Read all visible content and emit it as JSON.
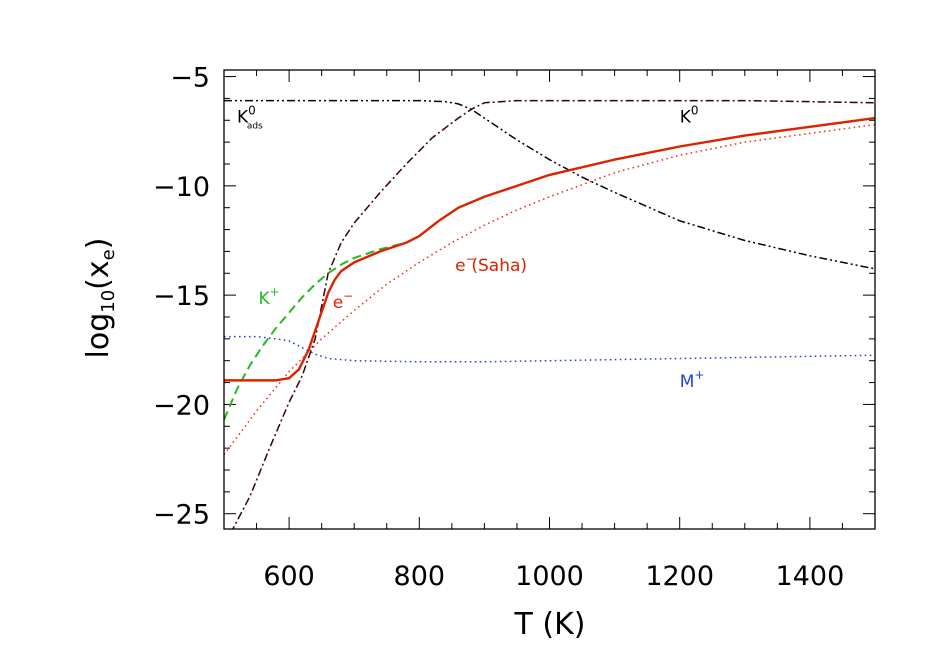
{
  "chart_data": {
    "type": "line",
    "xlabel": "T (K)",
    "ylabel_main": "log",
    "ylabel_sub": "10",
    "ylabel_x": "(x",
    "ylabel_xsub": "e",
    "ylabel_close": ")",
    "xlim": [
      500,
      1500
    ],
    "ylim": [
      -25.7,
      -4.7
    ],
    "xticks": [
      600,
      800,
      1000,
      1200,
      1400
    ],
    "xtick_labels": [
      "600",
      "800",
      "1000",
      "1200",
      "1400"
    ],
    "yticks": [
      -5,
      -10,
      -15,
      -20,
      -25
    ],
    "ytick_labels": [
      "−5",
      "−10",
      "−15",
      "−20",
      "−25"
    ],
    "grid": false,
    "series": [
      {
        "key": "k0ads",
        "color": "#000000",
        "style": "dash-dot-dot",
        "x": [
          500,
          600,
          700,
          800,
          840,
          860,
          880,
          900,
          950,
          1000,
          1050,
          1100,
          1200,
          1300,
          1400,
          1500
        ],
        "y": [
          -6.1,
          -6.1,
          -6.1,
          -6.1,
          -6.15,
          -6.25,
          -6.5,
          -6.9,
          -7.9,
          -8.8,
          -9.6,
          -10.3,
          -11.6,
          -12.5,
          -13.2,
          -13.8
        ]
      },
      {
        "key": "k0",
        "color": "#3a0000",
        "style": "dash-dot",
        "x": [
          510,
          540,
          570,
          600,
          620,
          640,
          660,
          680,
          700,
          740,
          780,
          820,
          860,
          880,
          900,
          950,
          1000,
          1100,
          1200,
          1300,
          1400,
          1500
        ],
        "y": [
          -25.9,
          -24.2,
          -22.0,
          -19.9,
          -18.7,
          -17.0,
          -14.0,
          -12.6,
          -11.7,
          -10.3,
          -9.0,
          -7.8,
          -6.9,
          -6.5,
          -6.2,
          -6.1,
          -6.1,
          -6.1,
          -6.1,
          -6.1,
          -6.15,
          -6.2
        ]
      },
      {
        "key": "kplus",
        "color": "#22bb22",
        "style": "dashed",
        "x": [
          500,
          520,
          540,
          560,
          580,
          600,
          620,
          640,
          660,
          680,
          700,
          740,
          780,
          800,
          830,
          860,
          900,
          1000,
          1100,
          1200,
          1300,
          1400,
          1500
        ],
        "y": [
          -20.7,
          -19.3,
          -18.2,
          -17.3,
          -16.5,
          -15.8,
          -15.1,
          -14.5,
          -14.0,
          -13.6,
          -13.3,
          -12.9,
          -12.6,
          -12.3,
          -11.6,
          -11.0,
          -10.5,
          -9.5,
          -8.8,
          -8.2,
          -7.7,
          -7.3,
          -6.9
        ]
      },
      {
        "key": "eminus",
        "color": "#dd2200",
        "style": "solid",
        "x": [
          500,
          540,
          580,
          600,
          615,
          630,
          645,
          660,
          670,
          680,
          700,
          740,
          780,
          800,
          830,
          860,
          900,
          1000,
          1100,
          1200,
          1300,
          1400,
          1500
        ],
        "y": [
          -18.9,
          -18.9,
          -18.9,
          -18.8,
          -18.4,
          -17.5,
          -16.2,
          -14.9,
          -14.3,
          -13.9,
          -13.5,
          -13.0,
          -12.6,
          -12.3,
          -11.6,
          -11.0,
          -10.5,
          -9.5,
          -8.8,
          -8.2,
          -7.7,
          -7.3,
          -6.9
        ]
      },
      {
        "key": "esaha",
        "color": "#ee3311",
        "style": "dotted",
        "x": [
          500,
          550,
          600,
          650,
          700,
          750,
          800,
          850,
          900,
          950,
          1000,
          1100,
          1200,
          1300,
          1400,
          1500
        ],
        "y": [
          -22.3,
          -20.3,
          -18.5,
          -17.0,
          -15.7,
          -14.5,
          -13.5,
          -12.6,
          -11.8,
          -11.1,
          -10.5,
          -9.4,
          -8.6,
          -8.0,
          -7.6,
          -7.2
        ]
      },
      {
        "key": "mplus",
        "color": "#2244dd",
        "style": "dotted",
        "x": [
          500,
          550,
          580,
          600,
          620,
          640,
          660,
          700,
          800,
          900,
          1000,
          1100,
          1200,
          1300,
          1400,
          1500
        ],
        "y": [
          -16.9,
          -16.9,
          -17.0,
          -17.1,
          -17.4,
          -17.7,
          -17.9,
          -18.0,
          -18.05,
          -18.05,
          -18.0,
          -17.95,
          -17.9,
          -17.85,
          -17.8,
          -17.75
        ]
      }
    ],
    "annotations": [
      {
        "key": "k0ads",
        "text": "K",
        "sup": "0",
        "sub": "ads",
        "color": "#000000",
        "x": 520,
        "y": -7.1
      },
      {
        "key": "k0",
        "text": "K",
        "sup": "0",
        "sub": "",
        "color": "#000000",
        "x": 1200,
        "y": -7.1
      },
      {
        "key": "kplus",
        "text": "K",
        "sup": "+",
        "sub": "",
        "color": "#22bb22",
        "x": 553,
        "y": -15.4
      },
      {
        "key": "eminus",
        "text": "e",
        "sup": "−",
        "sub": "",
        "color": "#dd2200",
        "x": 667,
        "y": -15.6
      },
      {
        "key": "esaha",
        "text": "e",
        "sup": "−",
        "sub": "",
        "color": "#dd2200",
        "x": 855,
        "y": -13.9
      },
      {
        "key": "esaha_paren",
        "text": "(Saha)",
        "sup": "",
        "sub": "",
        "color": "#dd2200",
        "x": 880,
        "y": -13.9
      },
      {
        "key": "mplus",
        "text": "M",
        "sup": "+",
        "sub": "",
        "color": "#2244dd",
        "x": 1200,
        "y": -19.2
      }
    ]
  }
}
